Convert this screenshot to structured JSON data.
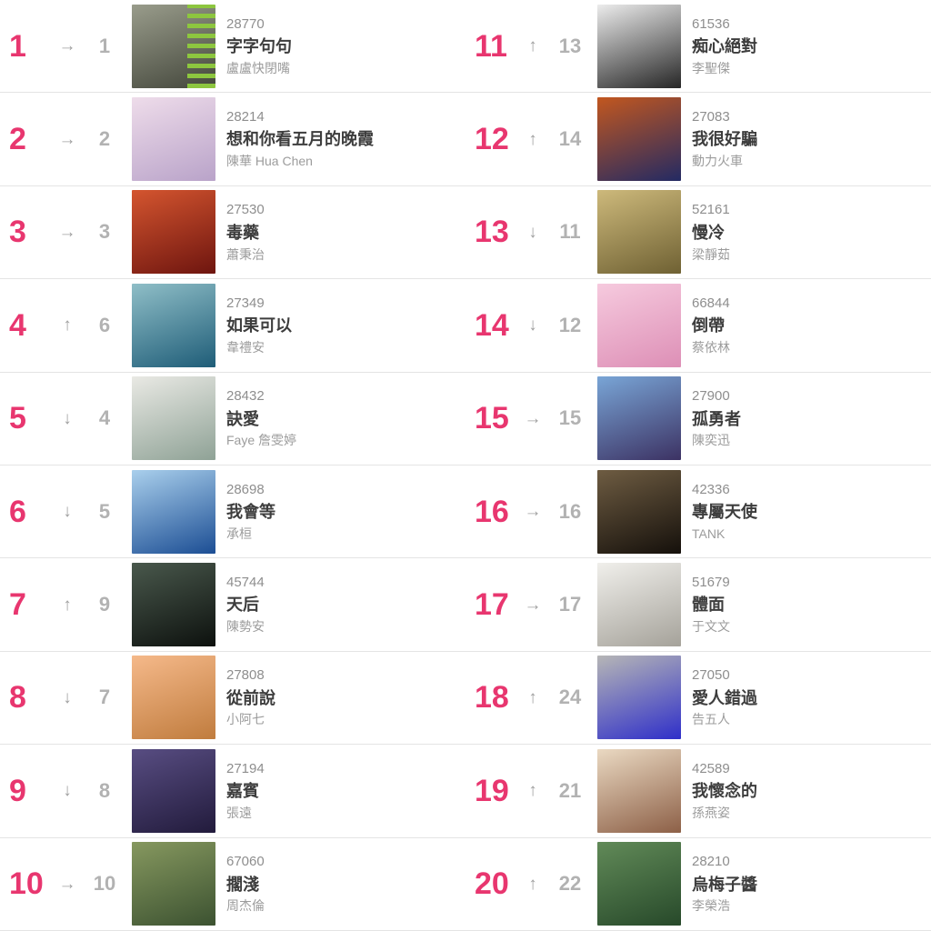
{
  "colors": {
    "rank_accent": "#e8366f",
    "movement_gray": "#9f9f9f",
    "prev_rank_gray": "#b2b2b2",
    "count_gray": "#8e8e8e",
    "title_dark": "#3d3d3d",
    "artist_gray": "#9c9c9c",
    "divider": "#e4e4e4",
    "background": "#ffffff"
  },
  "items": [
    {
      "rank": "1",
      "movement": "same",
      "movement_symbol": "→",
      "previous_rank": "1",
      "points": "28770",
      "title": "字字句句",
      "artist": "盧盧快閉嘴",
      "art": {
        "c1": "#999c8b",
        "c2": "#44473c",
        "bars": "#8dc63f"
      }
    },
    {
      "rank": "2",
      "movement": "same",
      "movement_symbol": "→",
      "previous_rank": "2",
      "points": "28214",
      "title": "想和你看五月的晚霞",
      "artist": "陳華 Hua Chen",
      "art": {
        "c1": "#eedcea",
        "c2": "#b9a3c9"
      }
    },
    {
      "rank": "3",
      "movement": "same",
      "movement_symbol": "→",
      "previous_rank": "3",
      "points": "27530",
      "title": "毒藥",
      "artist": "蕭秉治",
      "art": {
        "c1": "#d4552f",
        "c2": "#6e150f"
      }
    },
    {
      "rank": "4",
      "movement": "up",
      "movement_symbol": "↑",
      "previous_rank": "6",
      "points": "27349",
      "title": "如果可以",
      "artist": "韋禮安",
      "art": {
        "c1": "#8fbec7",
        "c2": "#1f5d78"
      }
    },
    {
      "rank": "5",
      "movement": "down",
      "movement_symbol": "↓",
      "previous_rank": "4",
      "points": "28432",
      "title": "訣愛",
      "artist": "Faye 詹雯婷",
      "art": {
        "c1": "#e9e9e4",
        "c2": "#8fa296"
      }
    },
    {
      "rank": "6",
      "movement": "down",
      "movement_symbol": "↓",
      "previous_rank": "5",
      "points": "28698",
      "title": "我會等",
      "artist": "承桓",
      "art": {
        "c1": "#a9cfec",
        "c2": "#1c4e94"
      }
    },
    {
      "rank": "7",
      "movement": "up",
      "movement_symbol": "↑",
      "previous_rank": "9",
      "points": "45744",
      "title": "天后",
      "artist": "陳勢安",
      "art": {
        "c1": "#49584c",
        "c2": "#0d110e"
      }
    },
    {
      "rank": "8",
      "movement": "down",
      "movement_symbol": "↓",
      "previous_rank": "7",
      "points": "27808",
      "title": "從前說",
      "artist": "小阿七",
      "art": {
        "c1": "#f5b98a",
        "c2": "#c07c3e"
      }
    },
    {
      "rank": "9",
      "movement": "down",
      "movement_symbol": "↓",
      "previous_rank": "8",
      "points": "27194",
      "title": "嘉賓",
      "artist": "張遠",
      "art": {
        "c1": "#584d82",
        "c2": "#221b3c"
      }
    },
    {
      "rank": "10",
      "movement": "same",
      "movement_symbol": "→",
      "previous_rank": "10",
      "points": "67060",
      "title": "擱淺",
      "artist": "周杰倫",
      "art": {
        "c1": "#86985f",
        "c2": "#3c5231"
      }
    },
    {
      "rank": "11",
      "movement": "up",
      "movement_symbol": "↑",
      "previous_rank": "13",
      "points": "61536",
      "title": "痴心絕對",
      "artist": "李聖傑",
      "art": {
        "c1": "#ececec",
        "c2": "#262626"
      }
    },
    {
      "rank": "12",
      "movement": "up",
      "movement_symbol": "↑",
      "previous_rank": "14",
      "points": "27083",
      "title": "我很好騙",
      "artist": "動力火車",
      "art": {
        "c1": "#c2571f",
        "c2": "#232a63"
      }
    },
    {
      "rank": "13",
      "movement": "down",
      "movement_symbol": "↓",
      "previous_rank": "11",
      "points": "52161",
      "title": "慢冷",
      "artist": "梁靜茹",
      "art": {
        "c1": "#cdb97b",
        "c2": "#6f6133"
      }
    },
    {
      "rank": "14",
      "movement": "down",
      "movement_symbol": "↓",
      "previous_rank": "12",
      "points": "66844",
      "title": "倒帶",
      "artist": "蔡依林",
      "art": {
        "c1": "#f6cade",
        "c2": "#dd8fb6"
      }
    },
    {
      "rank": "15",
      "movement": "same",
      "movement_symbol": "→",
      "previous_rank": "15",
      "points": "27900",
      "title": "孤勇者",
      "artist": "陳奕迅",
      "art": {
        "c1": "#79a5d6",
        "c2": "#3c3263"
      }
    },
    {
      "rank": "16",
      "movement": "same",
      "movement_symbol": "→",
      "previous_rank": "16",
      "points": "42336",
      "title": "專屬天使",
      "artist": "TANK",
      "art": {
        "c1": "#6e5c42",
        "c2": "#15100b"
      }
    },
    {
      "rank": "17",
      "movement": "same",
      "movement_symbol": "→",
      "previous_rank": "17",
      "points": "51679",
      "title": "體面",
      "artist": "于文文",
      "art": {
        "c1": "#f0efeb",
        "c2": "#a5a29a"
      }
    },
    {
      "rank": "18",
      "movement": "up",
      "movement_symbol": "↑",
      "previous_rank": "24",
      "points": "27050",
      "title": "愛人錯過",
      "artist": "告五人",
      "art": {
        "c1": "#b6b6b6",
        "c2": "#2f2fc9"
      }
    },
    {
      "rank": "19",
      "movement": "up",
      "movement_symbol": "↑",
      "previous_rank": "21",
      "points": "42589",
      "title": "我懷念的",
      "artist": "孫燕姿",
      "art": {
        "c1": "#ead9c2",
        "c2": "#8d6047"
      }
    },
    {
      "rank": "20",
      "movement": "up",
      "movement_symbol": "↑",
      "previous_rank": "22",
      "points": "28210",
      "title": "烏梅子醬",
      "artist": "李榮浩",
      "art": {
        "c1": "#618a58",
        "c2": "#27492a"
      }
    }
  ]
}
